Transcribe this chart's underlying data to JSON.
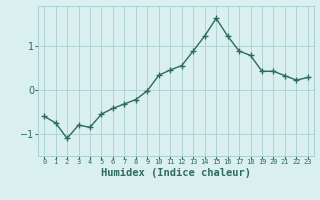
{
  "x": [
    0,
    1,
    2,
    3,
    4,
    5,
    6,
    7,
    8,
    9,
    10,
    11,
    12,
    13,
    14,
    15,
    16,
    17,
    18,
    19,
    20,
    21,
    22,
    23
  ],
  "y": [
    -0.6,
    -0.75,
    -1.1,
    -0.8,
    -0.85,
    -0.55,
    -0.42,
    -0.32,
    -0.22,
    -0.02,
    0.33,
    0.45,
    0.55,
    0.88,
    1.22,
    1.62,
    1.22,
    0.88,
    0.78,
    0.42,
    0.42,
    0.32,
    0.22,
    0.28
  ],
  "line_color": "#2d6b5e",
  "marker": "+",
  "markersize": 4,
  "markeredgewidth": 1.0,
  "linewidth": 1.0,
  "bg_color": "#daf0f0",
  "grid_color": "#aacfcf",
  "axis_label_color": "#2d6b5e",
  "tick_label_color": "#2d6b5e",
  "xlabel": "Humidex (Indice chaleur)",
  "yticks": [
    -1,
    0,
    1
  ],
  "ylim": [
    -1.5,
    1.9
  ],
  "xlim": [
    -0.5,
    23.5
  ],
  "xlabel_fontsize": 7.5,
  "ytick_fontsize": 7,
  "xtick_fontsize": 5
}
